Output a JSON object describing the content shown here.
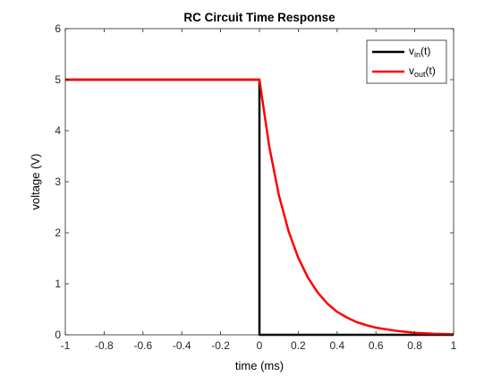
{
  "chart_data": {
    "type": "line",
    "title": "RC Circuit Time Response",
    "xlabel": "time (ms)",
    "ylabel": "voltage (V)",
    "xlim": [
      -1,
      1
    ],
    "ylim": [
      0,
      6
    ],
    "xticks": [
      "-1",
      "-0.8",
      "-0.6",
      "-0.4",
      "-0.2",
      "0",
      "0.2",
      "0.4",
      "0.6",
      "0.8",
      "1"
    ],
    "yticks": [
      "0",
      "1",
      "2",
      "3",
      "4",
      "5",
      "6"
    ],
    "grid": false,
    "legend_position": "top-right",
    "series": [
      {
        "name": "v_in(t)",
        "legend_main": "v",
        "legend_sub": "in",
        "legend_tail": "(t)",
        "color": "#000000",
        "x": [
          -1,
          0,
          0,
          1
        ],
        "y": [
          5,
          5,
          0,
          0
        ]
      },
      {
        "name": "v_out(t)",
        "legend_main": "v",
        "legend_sub": "out",
        "legend_tail": "(t)",
        "color": "#ff0000",
        "x": [
          -1,
          0,
          0.05,
          0.1,
          0.15,
          0.2,
          0.25,
          0.3,
          0.35,
          0.4,
          0.45,
          0.5,
          0.55,
          0.6,
          0.7,
          0.8,
          0.9,
          1
        ],
        "y": [
          5,
          5,
          3.7,
          2.74,
          2.03,
          1.51,
          1.12,
          0.83,
          0.61,
          0.45,
          0.34,
          0.25,
          0.19,
          0.14,
          0.08,
          0.04,
          0.02,
          0.01
        ]
      }
    ]
  }
}
